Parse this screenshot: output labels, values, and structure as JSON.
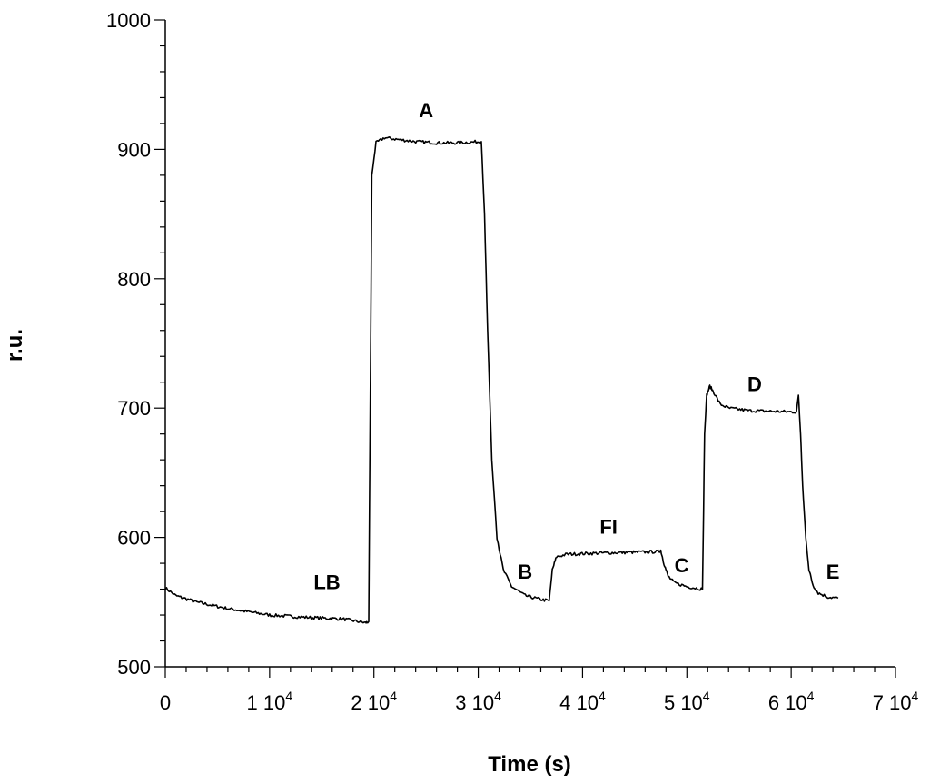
{
  "chart_data": {
    "type": "line",
    "xlabel": "Time (s)",
    "ylabel": "r.u.",
    "xlim": [
      0,
      70000
    ],
    "ylim": [
      500,
      1000
    ],
    "grid": false,
    "x_ticks": [
      {
        "value": 0,
        "mantissa": "0",
        "exponent": ""
      },
      {
        "value": 10000,
        "mantissa": "1 10",
        "exponent": "4"
      },
      {
        "value": 20000,
        "mantissa": "2 10",
        "exponent": "4"
      },
      {
        "value": 30000,
        "mantissa": "3 10",
        "exponent": "4"
      },
      {
        "value": 40000,
        "mantissa": "4 10",
        "exponent": "4"
      },
      {
        "value": 50000,
        "mantissa": "5 10",
        "exponent": "4"
      },
      {
        "value": 60000,
        "mantissa": "6 10",
        "exponent": "4"
      },
      {
        "value": 70000,
        "mantissa": "7 10",
        "exponent": "4"
      }
    ],
    "y_ticks": [
      {
        "value": 500,
        "label": "500"
      },
      {
        "value": 600,
        "label": "600"
      },
      {
        "value": 700,
        "label": "700"
      },
      {
        "value": 800,
        "label": "800"
      },
      {
        "value": 900,
        "label": "900"
      },
      {
        "value": 1000,
        "label": "1000"
      }
    ],
    "series": [
      {
        "x": [
          0,
          1000,
          3000,
          6000,
          10000,
          14000,
          17000,
          18500,
          19200,
          19500,
          19800,
          20200,
          21000,
          22000,
          24000,
          26000,
          28000,
          30300,
          30600,
          30900,
          31300,
          31800,
          32400,
          33200,
          34500,
          36000,
          36800,
          37100,
          37500,
          38500,
          42000,
          47200,
          47500,
          47800,
          48200,
          48800,
          50000,
          51500,
          51700,
          51900,
          52200,
          52600,
          53200,
          54000,
          56000,
          60500,
          60700,
          60900,
          61100,
          61400,
          61700,
          62100,
          62600,
          63500,
          64500
        ],
        "y": [
          561,
          555,
          550,
          545,
          540,
          538,
          537,
          535,
          534,
          535,
          880,
          905,
          909,
          908,
          906,
          905,
          905,
          906,
          850,
          760,
          660,
          600,
          575,
          562,
          555,
          552,
          551,
          575,
          585,
          587,
          588,
          589,
          590,
          580,
          570,
          565,
          562,
          560,
          680,
          710,
          717,
          712,
          703,
          700,
          698,
          697,
          710,
          680,
          640,
          600,
          575,
          563,
          557,
          554,
          553
        ]
      }
    ],
    "annotations": [
      {
        "text": "LB",
        "x": 15500,
        "y": 560
      },
      {
        "text": "A",
        "x": 25000,
        "y": 925
      },
      {
        "text": "B",
        "x": 34500,
        "y": 568
      },
      {
        "text": "FI",
        "x": 42500,
        "y": 603
      },
      {
        "text": "C",
        "x": 49500,
        "y": 573
      },
      {
        "text": "D",
        "x": 56500,
        "y": 713
      },
      {
        "text": "E",
        "x": 64000,
        "y": 568
      }
    ]
  }
}
